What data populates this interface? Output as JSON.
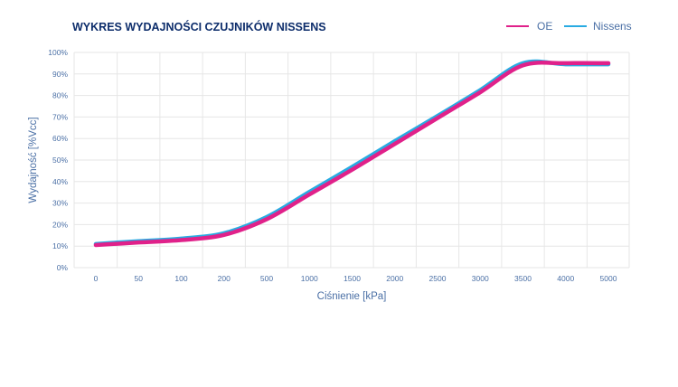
{
  "chart_data": {
    "type": "line",
    "title": "WYKRES WYDAJNOŚCI CZUJNIKÓW NISSENS",
    "xlabel": "Ciśnienie [kPa]",
    "ylabel": "Wydajność [%Vcc]",
    "categories": [
      "0",
      "50",
      "100",
      "200",
      "500",
      "1000",
      "1500",
      "2000",
      "2500",
      "3000",
      "3500",
      "4000",
      "5000"
    ],
    "yticks": [
      "0%",
      "10%",
      "20%",
      "30%",
      "40%",
      "50%",
      "60%",
      "70%",
      "80%",
      "90%",
      "100%"
    ],
    "ylim": [
      0,
      100
    ],
    "grid": true,
    "legend_position": "top-right",
    "series": [
      {
        "name": "OE",
        "color": "#e0218a",
        "values": [
          10.5,
          11.7,
          12.8,
          15.2,
          22.5,
          34.0,
          45.5,
          57.5,
          69.5,
          81.5,
          94.0,
          95.0,
          95.0
        ]
      },
      {
        "name": "Nissens",
        "color": "#29abe2",
        "values": [
          11.0,
          12.3,
          13.5,
          16.0,
          23.5,
          35.2,
          46.8,
          58.8,
          70.5,
          82.5,
          95.0,
          94.5,
          94.5
        ]
      }
    ]
  }
}
